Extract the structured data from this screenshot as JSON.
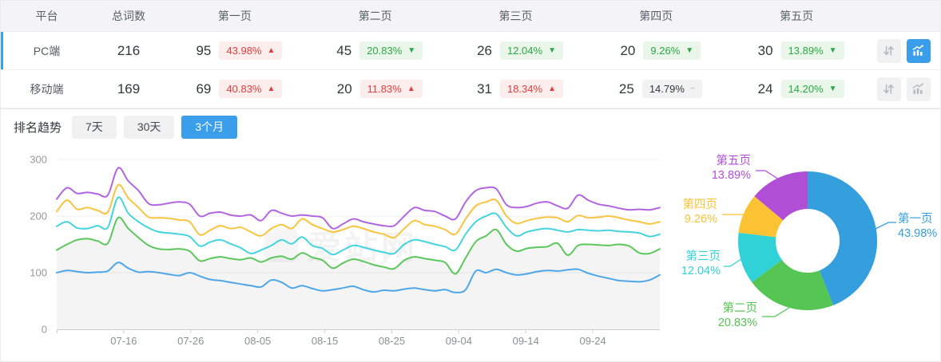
{
  "table": {
    "columns": [
      "平台",
      "总词数",
      "第一页",
      "第二页",
      "第三页",
      "第四页",
      "第五页"
    ],
    "rows": [
      {
        "platform": "PC端",
        "total": "216",
        "active": "true",
        "chart_active": "true",
        "pages": [
          {
            "count": "95",
            "pct": "43.98%",
            "arrow": "▲",
            "tone": "red"
          },
          {
            "count": "45",
            "pct": "20.83%",
            "arrow": "▼",
            "tone": "green"
          },
          {
            "count": "26",
            "pct": "12.04%",
            "arrow": "▼",
            "tone": "green"
          },
          {
            "count": "20",
            "pct": "9.26%",
            "arrow": "▼",
            "tone": "green"
          },
          {
            "count": "30",
            "pct": "13.89%",
            "arrow": "▼",
            "tone": "green"
          }
        ]
      },
      {
        "platform": "移动端",
        "total": "169",
        "active": "false",
        "chart_active": "false",
        "pages": [
          {
            "count": "69",
            "pct": "40.83%",
            "arrow": "▲",
            "tone": "red"
          },
          {
            "count": "20",
            "pct": "11.83%",
            "arrow": "▲",
            "tone": "red"
          },
          {
            "count": "31",
            "pct": "18.34%",
            "arrow": "▲",
            "tone": "red"
          },
          {
            "count": "25",
            "pct": "14.79%",
            "arrow": "−",
            "tone": "gray"
          },
          {
            "count": "24",
            "pct": "14.20%",
            "arrow": "▼",
            "tone": "green"
          }
        ]
      }
    ]
  },
  "trend": {
    "label": "排名趋势",
    "tabs": [
      {
        "label": "7天",
        "active": "false"
      },
      {
        "label": "30天",
        "active": "false"
      },
      {
        "label": "3个月",
        "active": "true"
      }
    ]
  },
  "watermark": "爱站网",
  "colors": {
    "accent": "#3a9eea",
    "up_red": "#e23c3c",
    "up_red_bg": "#fdeeee",
    "down_green": "#2aa843",
    "down_green_bg": "#eaf6ea",
    "flat_gray_bg": "#f2f2f3",
    "axis_label": "#999999",
    "grid": "#efefef"
  },
  "chart_data": [
    {
      "type": "line",
      "title": "排名趋势",
      "x_labels": [
        "07-16",
        "07-26",
        "08-05",
        "08-15",
        "08-25",
        "09-04",
        "09-14",
        "09-24"
      ],
      "y_ticks": [
        0,
        100,
        200,
        300
      ],
      "ylim": [
        0,
        300
      ],
      "grid": true,
      "legend_position": "none",
      "series": [
        {
          "name": "第一页",
          "color": "#4da6e8",
          "area": false,
          "values": [
            100,
            104,
            102,
            100,
            101,
            103,
            118,
            108,
            101,
            102,
            100,
            97,
            95,
            100,
            94,
            88,
            86,
            83,
            80,
            77,
            75,
            87,
            83,
            73,
            77,
            72,
            68,
            70,
            73,
            76,
            70,
            66,
            69,
            68,
            71,
            73,
            70,
            68,
            70,
            65,
            70,
            103,
            100,
            106,
            100,
            96,
            98,
            102,
            104,
            103,
            105,
            106,
            99,
            94,
            90,
            86,
            85,
            84,
            87,
            96
          ]
        },
        {
          "name": "第二页",
          "color": "#5cc75c",
          "area": true,
          "values": [
            140,
            150,
            158,
            160,
            156,
            152,
            197,
            178,
            162,
            148,
            142,
            141,
            142,
            138,
            121,
            125,
            128,
            125,
            123,
            126,
            119,
            126,
            129,
            124,
            135,
            127,
            122,
            108,
            117,
            124,
            120,
            114,
            110,
            107,
            122,
            128,
            125,
            122,
            118,
            98,
            126,
            155,
            165,
            176,
            150,
            138,
            143,
            145,
            146,
            152,
            131,
            148,
            150,
            149,
            148,
            150,
            147,
            135,
            134,
            142
          ]
        },
        {
          "name": "第三页",
          "color": "#45d4de",
          "area": false,
          "values": [
            182,
            190,
            179,
            178,
            183,
            180,
            233,
            205,
            190,
            179,
            172,
            170,
            168,
            164,
            147,
            154,
            158,
            151,
            144,
            134,
            140,
            148,
            158,
            151,
            163,
            148,
            143,
            132,
            140,
            148,
            145,
            140,
            136,
            134,
            150,
            158,
            155,
            150,
            146,
            140,
            168,
            190,
            200,
            204,
            180,
            165,
            172,
            176,
            178,
            175,
            172,
            176,
            175,
            174,
            175,
            173,
            172,
            170,
            164,
            168
          ]
        },
        {
          "name": "第四页",
          "color": "#f9c440",
          "area": false,
          "values": [
            208,
            228,
            212,
            215,
            210,
            207,
            255,
            232,
            215,
            198,
            197,
            196,
            193,
            190,
            167,
            175,
            183,
            178,
            180,
            172,
            165,
            178,
            185,
            178,
            195,
            185,
            178,
            172,
            176,
            182,
            178,
            172,
            168,
            162,
            178,
            192,
            185,
            182,
            176,
            168,
            195,
            218,
            225,
            228,
            200,
            187,
            192,
            196,
            198,
            197,
            190,
            201,
            197,
            198,
            200,
            197,
            193,
            190,
            186,
            190
          ]
        },
        {
          "name": "第五页",
          "color": "#b265e2",
          "area": false,
          "values": [
            230,
            250,
            240,
            242,
            239,
            237,
            285,
            262,
            245,
            222,
            220,
            223,
            225,
            221,
            200,
            205,
            207,
            202,
            200,
            202,
            192,
            210,
            205,
            200,
            202,
            200,
            197,
            178,
            186,
            195,
            190,
            186,
            183,
            183,
            200,
            215,
            210,
            208,
            200,
            195,
            225,
            245,
            250,
            248,
            220,
            215,
            217,
            223,
            225,
            218,
            214,
            237,
            228,
            221,
            218,
            214,
            211,
            212,
            211,
            215
          ]
        }
      ]
    },
    {
      "type": "donut",
      "slices": [
        {
          "label": "第一页",
          "value": 43.98,
          "pct_label": "43.98%",
          "color": "#359fdd"
        },
        {
          "label": "第二页",
          "value": 20.83,
          "pct_label": "20.83%",
          "color": "#55c553"
        },
        {
          "label": "第三页",
          "value": 12.04,
          "pct_label": "12.04%",
          "color": "#30d2d8"
        },
        {
          "label": "第四页",
          "value": 9.26,
          "pct_label": "9.26%",
          "color": "#fbc233"
        },
        {
          "label": "第五页",
          "value": 13.89,
          "pct_label": "13.89%",
          "color": "#b04fd6"
        }
      ]
    }
  ]
}
